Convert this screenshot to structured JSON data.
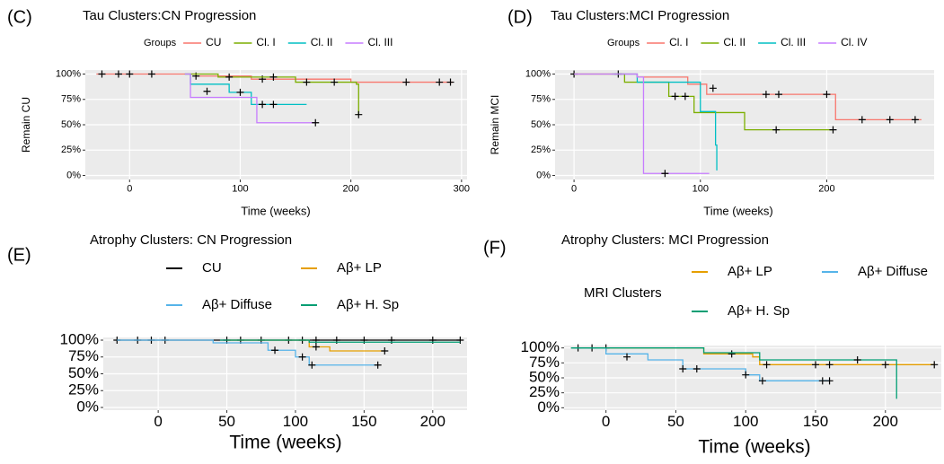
{
  "chart_data": [
    {
      "type": "step",
      "panel": "(C)",
      "title": "Tau Clusters:CN Progression",
      "legend_title": "Groups",
      "xlabel": "Time (weeks)",
      "ylabel": "Remain CU",
      "grid": true,
      "xlim": [
        -40,
        305
      ],
      "xticks": [
        0,
        100,
        200,
        300
      ],
      "ylim": [
        -4,
        104
      ],
      "yticks": [
        {
          "value": 0,
          "label": "0%"
        },
        {
          "value": 25,
          "label": "25%"
        },
        {
          "value": 50,
          "label": "50%"
        },
        {
          "value": 75,
          "label": "75%"
        },
        {
          "value": 100,
          "label": "100%"
        }
      ],
      "series": [
        {
          "name": "CU",
          "color": "#F8766D",
          "x": [
            -30,
            60,
            110,
            200,
            292
          ],
          "values": [
            100,
            98,
            95,
            92,
            92
          ],
          "censor_x": [
            -25,
            -10,
            0,
            20,
            60,
            120,
            250,
            280,
            290
          ],
          "censor_values": [
            100,
            100,
            100,
            100,
            98,
            95,
            92,
            92,
            92
          ]
        },
        {
          "name": "Cl. I",
          "color": "#7CAE00",
          "x": [
            50,
            80,
            150,
            205,
            207
          ],
          "values": [
            100,
            97,
            92,
            90,
            60
          ],
          "censor_x": [
            90,
            130,
            160,
            185,
            207
          ],
          "censor_values": [
            97,
            97,
            92,
            92,
            60
          ]
        },
        {
          "name": "Cl. II",
          "color": "#00BFC4",
          "x": [
            50,
            55,
            90,
            110,
            160
          ],
          "values": [
            100,
            90,
            82,
            70,
            70
          ],
          "censor_x": [
            70,
            100,
            120,
            130
          ],
          "censor_values": [
            83,
            82,
            70,
            70
          ]
        },
        {
          "name": "Cl. III",
          "color": "#C77CFF",
          "x": [
            50,
            55,
            95,
            115,
            168
          ],
          "values": [
            100,
            77,
            77,
            52,
            52
          ],
          "censor_x": [
            168
          ],
          "censor_values": [
            52
          ]
        }
      ]
    },
    {
      "type": "step",
      "panel": "(D)",
      "title": "Tau Clusters:MCI Progression",
      "legend_title": "Groups",
      "xlabel": "Time (weeks)",
      "ylabel": "Remain MCI",
      "grid": true,
      "xlim": [
        -15,
        285
      ],
      "xticks": [
        0,
        100,
        200
      ],
      "ylim": [
        -4,
        104
      ],
      "yticks": [
        {
          "value": 0,
          "label": "0%"
        },
        {
          "value": 25,
          "label": "25%"
        },
        {
          "value": 50,
          "label": "50%"
        },
        {
          "value": 75,
          "label": "75%"
        },
        {
          "value": 100,
          "label": "100%"
        }
      ],
      "series": [
        {
          "name": "Cl. I",
          "color": "#F8766D",
          "x": [
            0,
            50,
            90,
            105,
            207,
            275
          ],
          "values": [
            100,
            97,
            90,
            80,
            55,
            55
          ],
          "censor_x": [
            0,
            35,
            110,
            152,
            162,
            200,
            228,
            250,
            270
          ],
          "censor_values": [
            100,
            100,
            86,
            80,
            80,
            80,
            55,
            55,
            55
          ]
        },
        {
          "name": "Cl. II",
          "color": "#7CAE00",
          "x": [
            0,
            40,
            75,
            95,
            135,
            205
          ],
          "values": [
            100,
            92,
            78,
            62,
            45,
            45
          ],
          "censor_x": [
            80,
            88,
            160,
            205
          ],
          "censor_values": [
            78,
            78,
            45,
            45
          ]
        },
        {
          "name": "Cl. III",
          "color": "#00BFC4",
          "x": [
            30,
            50,
            100,
            112,
            113
          ],
          "values": [
            100,
            92,
            63,
            30,
            5
          ],
          "censor_x": [],
          "censor_values": []
        },
        {
          "name": "Cl. IV",
          "color": "#C77CFF",
          "x": [
            0,
            50,
            55,
            107
          ],
          "values": [
            100,
            97,
            2,
            2
          ],
          "censor_x": [
            72
          ],
          "censor_values": [
            2
          ]
        }
      ]
    },
    {
      "type": "step",
      "panel": "(E)",
      "title": "Atrophy Clusters: CN Progression",
      "xlabel": "Time (weeks)",
      "grid": true,
      "xlim": [
        -40,
        225
      ],
      "xticks": [
        0,
        50,
        100,
        150,
        200
      ],
      "ylim": [
        -4,
        104
      ],
      "yticks": [
        {
          "value": 0,
          "label": "0%"
        },
        {
          "value": 25,
          "label": "25%"
        },
        {
          "value": 50,
          "label": "50%"
        },
        {
          "value": 75,
          "label": "75%"
        },
        {
          "value": 100,
          "label": "100%"
        }
      ],
      "series": [
        {
          "name": "CU",
          "color": "#000000",
          "x": [
            -30,
            220
          ],
          "values": [
            100,
            100
          ],
          "censor_x": [
            -30,
            -15,
            -5,
            5,
            50,
            60,
            75,
            95,
            105,
            115,
            130,
            150,
            170,
            200,
            220
          ],
          "censor_values": [
            100,
            100,
            100,
            100,
            100,
            100,
            100,
            100,
            100,
            100,
            100,
            100,
            100,
            100,
            100
          ]
        },
        {
          "name": "Aβ+ LP",
          "color": "#E69F00",
          "x": [
            50,
            110,
            125,
            165
          ],
          "values": [
            100,
            90,
            84,
            84
          ],
          "censor_x": [
            115,
            165
          ],
          "censor_values": [
            90,
            84
          ]
        },
        {
          "name": "Aβ+ Diffuse",
          "color": "#56B4E9",
          "x": [
            -30,
            40,
            80,
            100,
            110,
            160
          ],
          "values": [
            100,
            96,
            85,
            75,
            63,
            63
          ],
          "censor_x": [
            85,
            105,
            112,
            160
          ],
          "censor_values": [
            85,
            75,
            63,
            63
          ]
        },
        {
          "name": "Aβ+ H. Sp",
          "color": "#009E73",
          "x": [
            45,
            110,
            220
          ],
          "values": [
            100,
            97,
            97
          ],
          "censor_x": [],
          "censor_values": []
        }
      ]
    },
    {
      "type": "step",
      "panel": "(F)",
      "title": "Atrophy Clusters: MCI Progression",
      "legend_title": "MRI Clusters",
      "xlabel": "Time (weeks)",
      "grid": true,
      "xlim": [
        -30,
        240
      ],
      "xticks": [
        0,
        50,
        100,
        150,
        200
      ],
      "ylim": [
        -4,
        104
      ],
      "yticks": [
        {
          "value": 0,
          "label": "0%"
        },
        {
          "value": 25,
          "label": "25%"
        },
        {
          "value": 50,
          "label": "50%"
        },
        {
          "value": 75,
          "label": "75%"
        },
        {
          "value": 100,
          "label": "100%"
        }
      ],
      "series": [
        {
          "name": "Aβ+ LP",
          "color": "#E69F00",
          "x": [
            -25,
            70,
            105,
            110,
            235
          ],
          "values": [
            100,
            90,
            85,
            72,
            72
          ],
          "censor_x": [
            -20,
            -10,
            0,
            90,
            115,
            150,
            160,
            200,
            235
          ],
          "censor_values": [
            100,
            100,
            100,
            90,
            72,
            72,
            72,
            72,
            72
          ]
        },
        {
          "name": "Aβ+ Diffuse",
          "color": "#56B4E9",
          "x": [
            -25,
            0,
            30,
            55,
            100,
            110,
            160
          ],
          "values": [
            100,
            90,
            80,
            65,
            55,
            45,
            45
          ],
          "censor_x": [
            15,
            55,
            65,
            100,
            112,
            155,
            160
          ],
          "censor_values": [
            85,
            65,
            65,
            55,
            45,
            45,
            45
          ]
        },
        {
          "name": "Aβ+ H. Sp",
          "color": "#009E73",
          "x": [
            -25,
            70,
            110,
            207,
            208
          ],
          "values": [
            100,
            92,
            80,
            80,
            15
          ],
          "censor_x": [
            180
          ],
          "censor_values": [
            80
          ]
        }
      ]
    }
  ]
}
